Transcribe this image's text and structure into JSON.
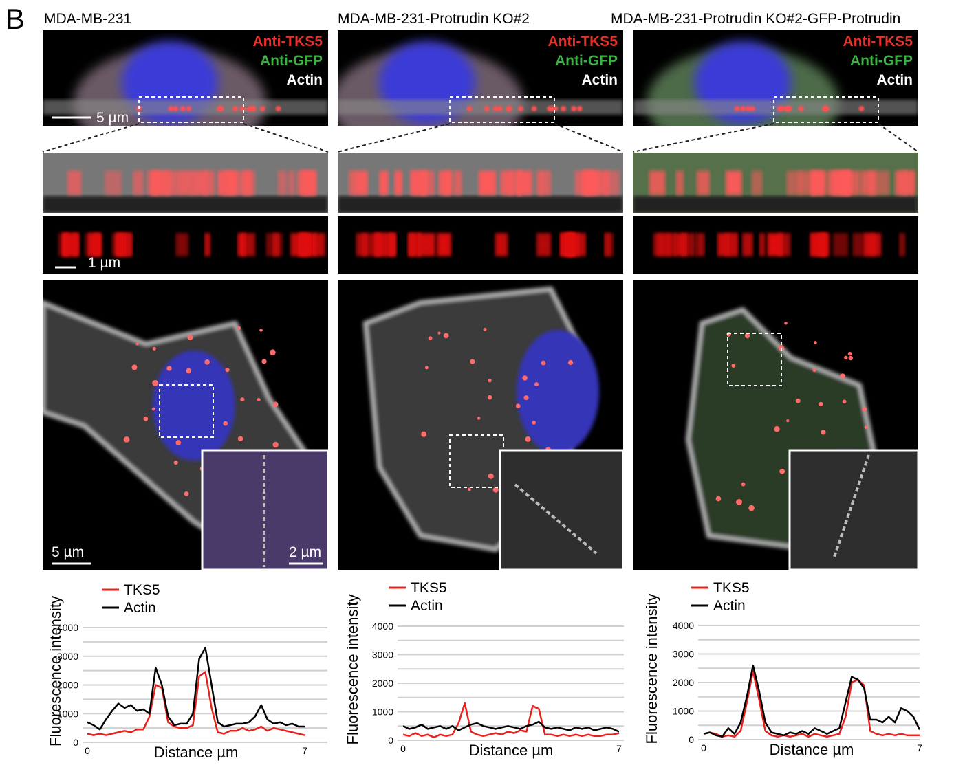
{
  "panel_label": "B",
  "columns": [
    {
      "title": "MDA-MB-231"
    },
    {
      "title": "MDA-MB-231-Protrudin KO#2"
    },
    {
      "title": "MDA-MB-231-Protrudin KO#2-GFP-Protrudin"
    }
  ],
  "channels": [
    {
      "text": "Anti-TKS5",
      "color": "#e8302a"
    },
    {
      "text": "Anti-GFP",
      "color": "#3cb043"
    },
    {
      "text": "Actin",
      "color": "#ffffff"
    }
  ],
  "scale_labels": [
    "5 µm",
    "1 µm",
    "5 µm",
    "2 µm"
  ],
  "chart_data": [
    {
      "type": "line",
      "x_label": "Distance µm",
      "y_label": "Fluorescence intensity",
      "xlim": [
        0,
        7
      ],
      "xticks": [
        0,
        7
      ],
      "ylim": [
        0,
        4000
      ],
      "yticks": [
        0,
        1000,
        2000,
        3000,
        4000
      ],
      "minor_gridlines": [
        500,
        1500,
        2500,
        3500
      ],
      "grid": true,
      "x": [
        0,
        0.2,
        0.4,
        0.6,
        0.8,
        1,
        1.2,
        1.4,
        1.6,
        1.8,
        2,
        2.2,
        2.4,
        2.6,
        2.8,
        3,
        3.2,
        3.4,
        3.6,
        3.8,
        4,
        4.2,
        4.4,
        4.6,
        4.8,
        5,
        5.2,
        5.4,
        5.6,
        5.8,
        6,
        6.2,
        6.4,
        6.6,
        6.8,
        7
      ],
      "series": [
        {
          "name": "TKS5",
          "color": "#e8211d",
          "values": [
            300,
            250,
            300,
            250,
            300,
            350,
            400,
            350,
            450,
            450,
            900,
            2000,
            1900,
            700,
            550,
            500,
            500,
            600,
            2300,
            2450,
            1200,
            350,
            300,
            400,
            400,
            500,
            400,
            450,
            550,
            400,
            500,
            450,
            400,
            350,
            300,
            250
          ]
        },
        {
          "name": "Actin",
          "color": "#000000",
          "values": [
            700,
            600,
            450,
            800,
            1100,
            1350,
            1200,
            1300,
            1100,
            1150,
            1000,
            2600,
            2000,
            900,
            600,
            650,
            650,
            1000,
            2900,
            3300,
            2000,
            700,
            550,
            600,
            650,
            650,
            700,
            900,
            1300,
            800,
            650,
            700,
            600,
            650,
            550,
            550
          ]
        }
      ]
    },
    {
      "type": "line",
      "x_label": "Distance µm",
      "y_label": "Fluorescence intensity",
      "xlim": [
        0,
        7
      ],
      "xticks": [
        0,
        7
      ],
      "ylim": [
        0,
        4000
      ],
      "yticks": [
        0,
        1000,
        2000,
        3000,
        4000
      ],
      "minor_gridlines": [
        500,
        1500,
        2500,
        3500
      ],
      "grid": true,
      "x": [
        0,
        0.2,
        0.4,
        0.6,
        0.8,
        1,
        1.2,
        1.4,
        1.6,
        1.8,
        2,
        2.2,
        2.4,
        2.6,
        2.8,
        3,
        3.2,
        3.4,
        3.6,
        3.8,
        4,
        4.2,
        4.4,
        4.6,
        4.8,
        5,
        5.2,
        5.4,
        5.6,
        5.8,
        6,
        6.2,
        6.4,
        6.6,
        6.8,
        7
      ],
      "series": [
        {
          "name": "TKS5",
          "color": "#e8211d",
          "values": [
            200,
            150,
            250,
            150,
            200,
            100,
            200,
            150,
            200,
            600,
            1300,
            300,
            200,
            150,
            200,
            250,
            200,
            300,
            250,
            350,
            300,
            1200,
            1100,
            200,
            200,
            150,
            200,
            150,
            200,
            150,
            200,
            150,
            150,
            200,
            200,
            250
          ]
        },
        {
          "name": "Actin",
          "color": "#000000",
          "values": [
            500,
            400,
            450,
            550,
            400,
            450,
            500,
            400,
            500,
            350,
            450,
            550,
            600,
            500,
            450,
            400,
            450,
            500,
            450,
            400,
            500,
            550,
            650,
            450,
            400,
            450,
            400,
            350,
            450,
            400,
            450,
            350,
            400,
            450,
            400,
            300
          ]
        }
      ]
    },
    {
      "type": "line",
      "x_label": "Distance µm",
      "y_label": "Fluorescence intensity",
      "xlim": [
        0,
        7
      ],
      "xticks": [
        0,
        7
      ],
      "ylim": [
        0,
        4000
      ],
      "yticks": [
        0,
        1000,
        2000,
        3000,
        4000
      ],
      "minor_gridlines": [
        500,
        1500,
        2500,
        3500
      ],
      "grid": true,
      "x": [
        0,
        0.2,
        0.4,
        0.6,
        0.8,
        1,
        1.2,
        1.4,
        1.6,
        1.8,
        2,
        2.2,
        2.4,
        2.6,
        2.8,
        3,
        3.2,
        3.4,
        3.6,
        3.8,
        4,
        4.2,
        4.4,
        4.6,
        4.8,
        5,
        5.2,
        5.4,
        5.6,
        5.8,
        6,
        6.2,
        6.4,
        6.6,
        6.8,
        7
      ],
      "series": [
        {
          "name": "TKS5",
          "color": "#e8211d",
          "values": [
            200,
            250,
            200,
            100,
            150,
            100,
            300,
            1300,
            2400,
            1400,
            300,
            150,
            100,
            150,
            100,
            150,
            200,
            100,
            200,
            150,
            100,
            150,
            200,
            800,
            2000,
            2100,
            1900,
            300,
            200,
            150,
            200,
            150,
            200,
            150,
            150,
            150
          ]
        },
        {
          "name": "Actin",
          "color": "#000000",
          "values": [
            200,
            250,
            150,
            100,
            400,
            200,
            600,
            1500,
            2600,
            1700,
            600,
            250,
            200,
            150,
            250,
            200,
            300,
            200,
            400,
            300,
            200,
            300,
            400,
            1300,
            2200,
            2100,
            1800,
            700,
            700,
            600,
            800,
            600,
            1100,
            1000,
            800,
            350
          ]
        }
      ]
    }
  ]
}
